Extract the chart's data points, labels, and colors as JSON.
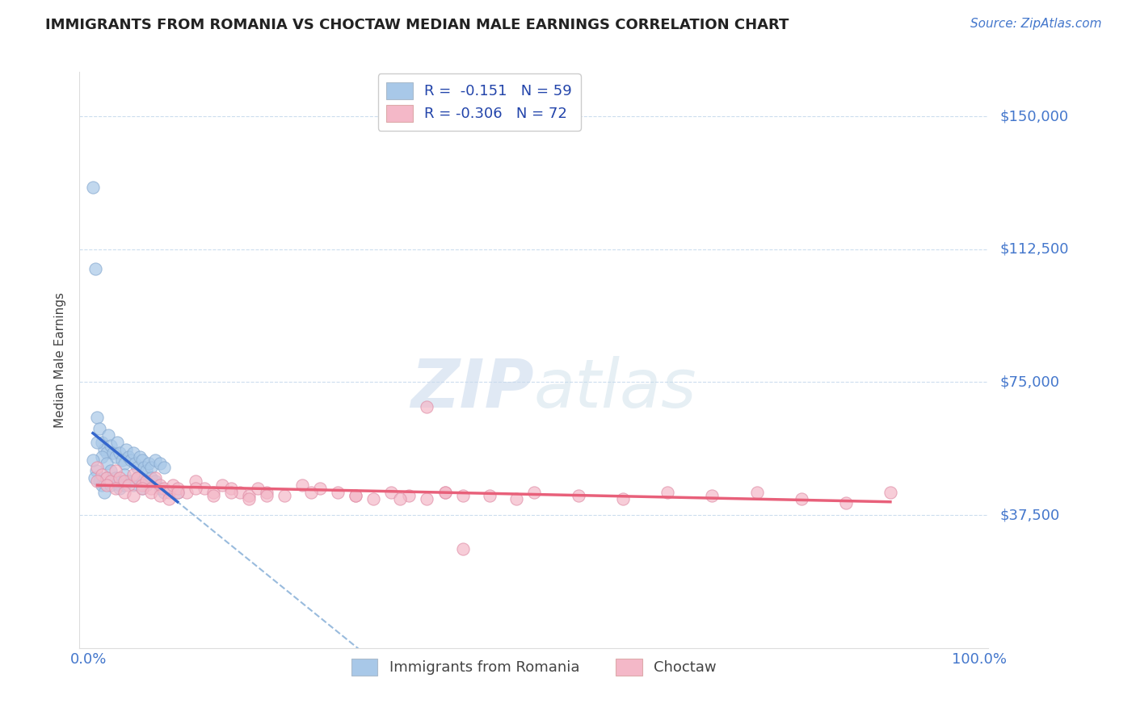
{
  "title": "IMMIGRANTS FROM ROMANIA VS CHOCTAW MEDIAN MALE EARNINGS CORRELATION CHART",
  "source": "Source: ZipAtlas.com",
  "ylabel": "Median Male Earnings",
  "xlim": [
    -0.01,
    1.01
  ],
  "ylim": [
    0,
    162500
  ],
  "ytick_vals": [
    37500,
    75000,
    112500,
    150000
  ],
  "ytick_labels": [
    "$37,500",
    "$75,000",
    "$112,500",
    "$150,000"
  ],
  "xtick_vals": [
    0.0,
    1.0
  ],
  "xtick_labels": [
    "0.0%",
    "100.0%"
  ],
  "legend_r1": "R =  -0.151   N = 59",
  "legend_r2": "R = -0.306   N = 72",
  "legend_label1": "Immigrants from Romania",
  "legend_label2": "Choctaw",
  "color_romania": "#a8c8e8",
  "color_choctaw": "#f4b8c8",
  "color_romania_line": "#3366cc",
  "color_choctaw_line": "#e8607a",
  "color_dashed": "#99bbdd",
  "color_axis": "#4477cc",
  "color_grid": "#ccddee",
  "watermark_zip": "ZIP",
  "watermark_atlas": "atlas",
  "romania_x": [
    0.005,
    0.008,
    0.01,
    0.012,
    0.015,
    0.018,
    0.02,
    0.022,
    0.025,
    0.028,
    0.03,
    0.032,
    0.035,
    0.038,
    0.04,
    0.042,
    0.045,
    0.048,
    0.05,
    0.052,
    0.055,
    0.058,
    0.06,
    0.062,
    0.065,
    0.068,
    0.07,
    0.075,
    0.08,
    0.085,
    0.01,
    0.015,
    0.02,
    0.025,
    0.03,
    0.035,
    0.04,
    0.045,
    0.05,
    0.055,
    0.06,
    0.065,
    0.07,
    0.075,
    0.08,
    0.085,
    0.009,
    0.012,
    0.015,
    0.018,
    0.02,
    0.025,
    0.03,
    0.035,
    0.04,
    0.06,
    0.005,
    0.007,
    0.1
  ],
  "romania_y": [
    130000,
    107000,
    65000,
    62000,
    58000,
    56000,
    55000,
    60000,
    57000,
    55000,
    54000,
    58000,
    55000,
    53000,
    52000,
    56000,
    54000,
    53000,
    55000,
    52000,
    51000,
    54000,
    53000,
    51000,
    50000,
    52000,
    51000,
    53000,
    52000,
    51000,
    58000,
    54000,
    52000,
    50000,
    48000,
    46000,
    49000,
    47000,
    46000,
    48000,
    47000,
    46000,
    48000,
    47000,
    45000,
    44000,
    50000,
    47000,
    46000,
    44000,
    48000,
    46000,
    47000,
    45000,
    46000,
    45000,
    53000,
    48000,
    44000
  ],
  "choctaw_x": [
    0.01,
    0.015,
    0.02,
    0.025,
    0.03,
    0.035,
    0.04,
    0.045,
    0.05,
    0.055,
    0.06,
    0.065,
    0.07,
    0.075,
    0.08,
    0.085,
    0.09,
    0.095,
    0.1,
    0.11,
    0.12,
    0.13,
    0.14,
    0.15,
    0.16,
    0.17,
    0.18,
    0.19,
    0.2,
    0.22,
    0.24,
    0.26,
    0.28,
    0.3,
    0.32,
    0.34,
    0.36,
    0.38,
    0.4,
    0.42,
    0.01,
    0.02,
    0.03,
    0.04,
    0.05,
    0.06,
    0.07,
    0.08,
    0.09,
    0.1,
    0.12,
    0.14,
    0.16,
    0.18,
    0.2,
    0.25,
    0.3,
    0.35,
    0.4,
    0.45,
    0.5,
    0.55,
    0.6,
    0.65,
    0.7,
    0.75,
    0.8,
    0.85,
    0.9,
    0.38,
    0.42,
    0.48
  ],
  "choctaw_y": [
    51000,
    49000,
    48000,
    47000,
    50000,
    48000,
    47000,
    46000,
    49000,
    48000,
    46000,
    47000,
    45000,
    48000,
    46000,
    45000,
    44000,
    46000,
    45000,
    44000,
    47000,
    45000,
    44000,
    46000,
    45000,
    44000,
    43000,
    45000,
    44000,
    43000,
    46000,
    45000,
    44000,
    43000,
    42000,
    44000,
    43000,
    42000,
    44000,
    43000,
    47000,
    46000,
    45000,
    44000,
    43000,
    45000,
    44000,
    43000,
    42000,
    44000,
    45000,
    43000,
    44000,
    42000,
    43000,
    44000,
    43000,
    42000,
    44000,
    43000,
    44000,
    43000,
    42000,
    44000,
    43000,
    44000,
    42000,
    41000,
    44000,
    68000,
    28000,
    42000
  ]
}
